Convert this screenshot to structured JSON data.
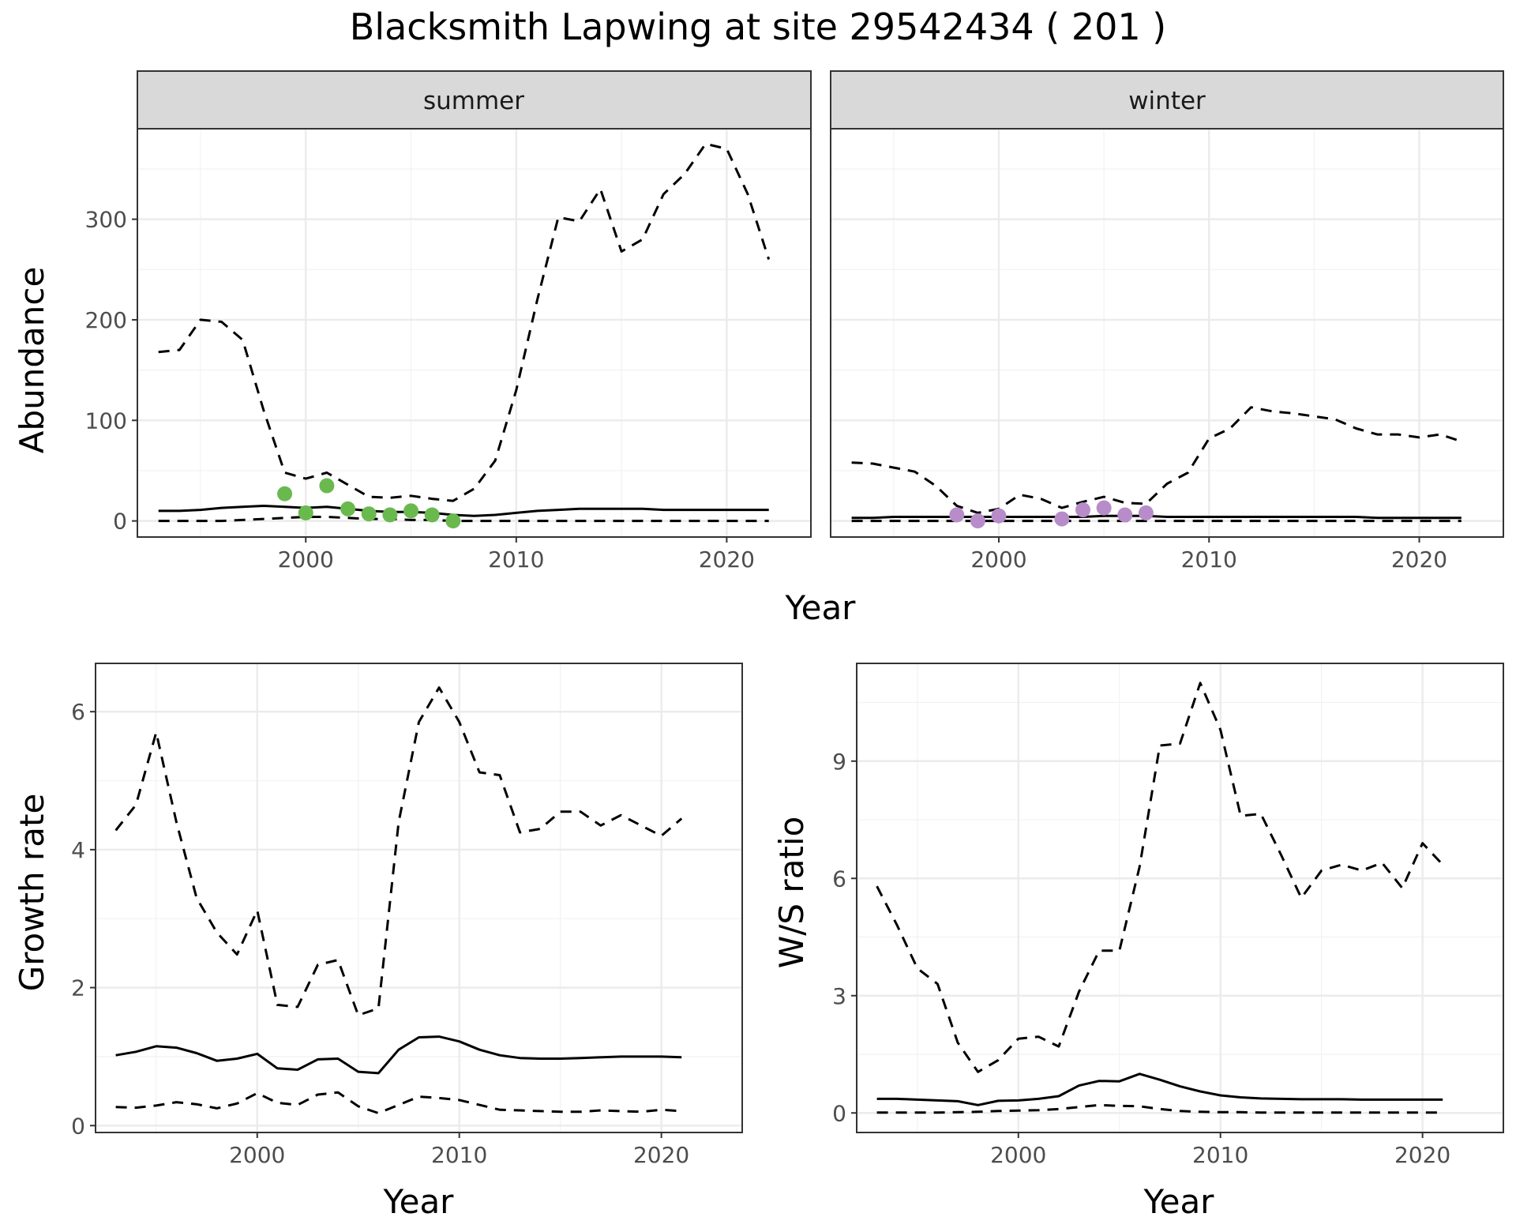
{
  "title": "Blacksmith Lapwing at site 29542434 ( 201 )",
  "colors": {
    "summer_points": "#6ab94f",
    "winter_points": "#b78cc9",
    "lines": "#000000",
    "strip_fill": "#d9d9d9",
    "grid": "#ebebeb"
  },
  "chart_data": [
    {
      "id": "abundance",
      "type": "line",
      "ylabel": "Abundance",
      "xlabel": "Year",
      "xlim": [
        1992,
        2024
      ],
      "ylim": [
        -16,
        390
      ],
      "xticks": [
        2000,
        2010,
        2020
      ],
      "yticks": [
        0,
        100,
        200,
        300
      ],
      "grid": true,
      "facets": [
        {
          "label": "summer",
          "point_color": "#6ab94f",
          "years": [
            1993,
            1994,
            1995,
            1996,
            1997,
            1998,
            1999,
            2000,
            2001,
            2002,
            2003,
            2004,
            2005,
            2006,
            2007,
            2008,
            2009,
            2010,
            2011,
            2012,
            2013,
            2014,
            2015,
            2016,
            2017,
            2018,
            2019,
            2020,
            2021,
            2022
          ],
          "estimate": [
            10,
            10,
            11,
            13,
            14,
            15,
            14,
            13,
            14,
            12,
            10,
            9,
            9,
            8,
            6,
            5,
            6,
            8,
            10,
            11,
            12,
            12,
            12,
            12,
            11,
            11,
            11,
            11,
            11,
            11
          ],
          "upper": [
            168,
            170,
            200,
            198,
            180,
            110,
            48,
            42,
            48,
            36,
            24,
            23,
            25,
            22,
            20,
            32,
            60,
            130,
            220,
            302,
            298,
            330,
            268,
            280,
            325,
            345,
            375,
            370,
            325,
            260
          ],
          "lower": [
            0,
            0,
            0,
            0,
            1,
            2,
            3,
            4,
            4,
            3,
            2,
            2,
            1,
            1,
            0,
            0,
            0,
            0,
            0,
            0,
            0,
            0,
            0,
            0,
            0,
            0,
            0,
            0,
            0,
            0
          ],
          "observations": {
            "years": [
              1999,
              2000,
              2001,
              2002,
              2003,
              2004,
              2005,
              2006,
              2007
            ],
            "values": [
              27,
              8,
              35,
              12,
              7,
              6,
              10,
              6,
              0
            ]
          }
        },
        {
          "label": "winter",
          "point_color": "#b78cc9",
          "years": [
            1993,
            1994,
            1995,
            1996,
            1997,
            1998,
            1999,
            2000,
            2001,
            2002,
            2003,
            2004,
            2005,
            2006,
            2007,
            2008,
            2009,
            2010,
            2011,
            2012,
            2013,
            2014,
            2015,
            2016,
            2017,
            2018,
            2019,
            2020,
            2021,
            2022
          ],
          "estimate": [
            3,
            3,
            4,
            4,
            4,
            4,
            4,
            4,
            4,
            4,
            4,
            4,
            5,
            5,
            5,
            4,
            4,
            4,
            4,
            4,
            4,
            4,
            4,
            4,
            4,
            3,
            3,
            3,
            3,
            3
          ],
          "upper": [
            58,
            57,
            53,
            49,
            35,
            15,
            8,
            12,
            26,
            22,
            13,
            19,
            24,
            18,
            17,
            37,
            48,
            82,
            92,
            113,
            109,
            107,
            104,
            101,
            92,
            86,
            86,
            83,
            86,
            79
          ],
          "lower": [
            0,
            0,
            0,
            0,
            0,
            0,
            0,
            0,
            0,
            0,
            0,
            0,
            0,
            0,
            0,
            0,
            0,
            0,
            0,
            0,
            0,
            0,
            0,
            0,
            0,
            0,
            0,
            0,
            0,
            0
          ],
          "observations": {
            "years": [
              1998,
              1999,
              2000,
              2003,
              2004,
              2005,
              2006,
              2007
            ],
            "values": [
              6,
              0,
              5,
              2,
              11,
              13,
              6,
              8
            ]
          }
        }
      ]
    },
    {
      "id": "growth",
      "type": "line",
      "ylabel": "Growth rate",
      "xlabel": "Year",
      "xlim": [
        1992,
        2024
      ],
      "ylim": [
        -0.1,
        6.7
      ],
      "xticks": [
        2000,
        2010,
        2020
      ],
      "yticks": [
        0,
        2,
        4,
        6
      ],
      "grid": true,
      "years": [
        1993,
        1994,
        1995,
        1996,
        1997,
        1998,
        1999,
        2000,
        2001,
        2002,
        2003,
        2004,
        2005,
        2006,
        2007,
        2008,
        2009,
        2010,
        2011,
        2012,
        2013,
        2014,
        2015,
        2016,
        2017,
        2018,
        2019,
        2020,
        2021
      ],
      "estimate": [
        1.02,
        1.07,
        1.15,
        1.13,
        1.05,
        0.94,
        0.97,
        1.04,
        0.83,
        0.81,
        0.96,
        0.97,
        0.78,
        0.76,
        1.1,
        1.28,
        1.29,
        1.22,
        1.1,
        1.02,
        0.98,
        0.97,
        0.97,
        0.98,
        0.99,
        1.0,
        1.0,
        1.0,
        0.99
      ],
      "upper": [
        4.28,
        4.65,
        5.7,
        4.4,
        3.3,
        2.8,
        2.48,
        3.12,
        1.75,
        1.72,
        2.33,
        2.4,
        1.6,
        1.7,
        4.4,
        5.85,
        6.35,
        5.85,
        5.12,
        5.08,
        4.25,
        4.3,
        4.55,
        4.55,
        4.35,
        4.5,
        4.35,
        4.2,
        4.45
      ],
      "lower": [
        0.27,
        0.26,
        0.29,
        0.34,
        0.31,
        0.25,
        0.32,
        0.47,
        0.33,
        0.3,
        0.45,
        0.48,
        0.28,
        0.18,
        0.3,
        0.42,
        0.4,
        0.37,
        0.3,
        0.23,
        0.22,
        0.21,
        0.2,
        0.2,
        0.22,
        0.21,
        0.2,
        0.23,
        0.21
      ]
    },
    {
      "id": "ratio",
      "type": "line",
      "ylabel": "W/S ratio",
      "xlabel": "Year",
      "xlim": [
        1992,
        2024
      ],
      "ylim": [
        -0.5,
        11.5
      ],
      "xticks": [
        2000,
        2010,
        2020
      ],
      "yticks": [
        0,
        3,
        6,
        9
      ],
      "grid": true,
      "years": [
        1993,
        1994,
        1995,
        1996,
        1997,
        1998,
        1999,
        2000,
        2001,
        2002,
        2003,
        2004,
        2005,
        2006,
        2007,
        2008,
        2009,
        2010,
        2011,
        2012,
        2013,
        2014,
        2015,
        2016,
        2017,
        2018,
        2019,
        2020,
        2021
      ],
      "estimate": [
        0.36,
        0.36,
        0.34,
        0.32,
        0.3,
        0.2,
        0.31,
        0.32,
        0.36,
        0.43,
        0.7,
        0.82,
        0.81,
        1.0,
        0.85,
        0.68,
        0.55,
        0.45,
        0.4,
        0.37,
        0.36,
        0.35,
        0.35,
        0.35,
        0.34,
        0.34,
        0.34,
        0.34,
        0.34
      ],
      "upper": [
        5.8,
        4.8,
        3.7,
        3.3,
        1.8,
        1.05,
        1.35,
        1.9,
        1.95,
        1.7,
        3.1,
        4.15,
        4.15,
        6.3,
        9.4,
        9.45,
        11.0,
        9.8,
        7.6,
        7.65,
        6.6,
        5.5,
        6.2,
        6.35,
        6.2,
        6.4,
        5.75,
        6.9,
        6.35
      ],
      "lower": [
        0.01,
        0.01,
        0.01,
        0.01,
        0.02,
        0.03,
        0.05,
        0.06,
        0.07,
        0.1,
        0.15,
        0.2,
        0.18,
        0.17,
        0.1,
        0.05,
        0.03,
        0.02,
        0.02,
        0.01,
        0.01,
        0.01,
        0.01,
        0.01,
        0.01,
        0.01,
        0.01,
        0.01,
        0.01
      ]
    }
  ]
}
